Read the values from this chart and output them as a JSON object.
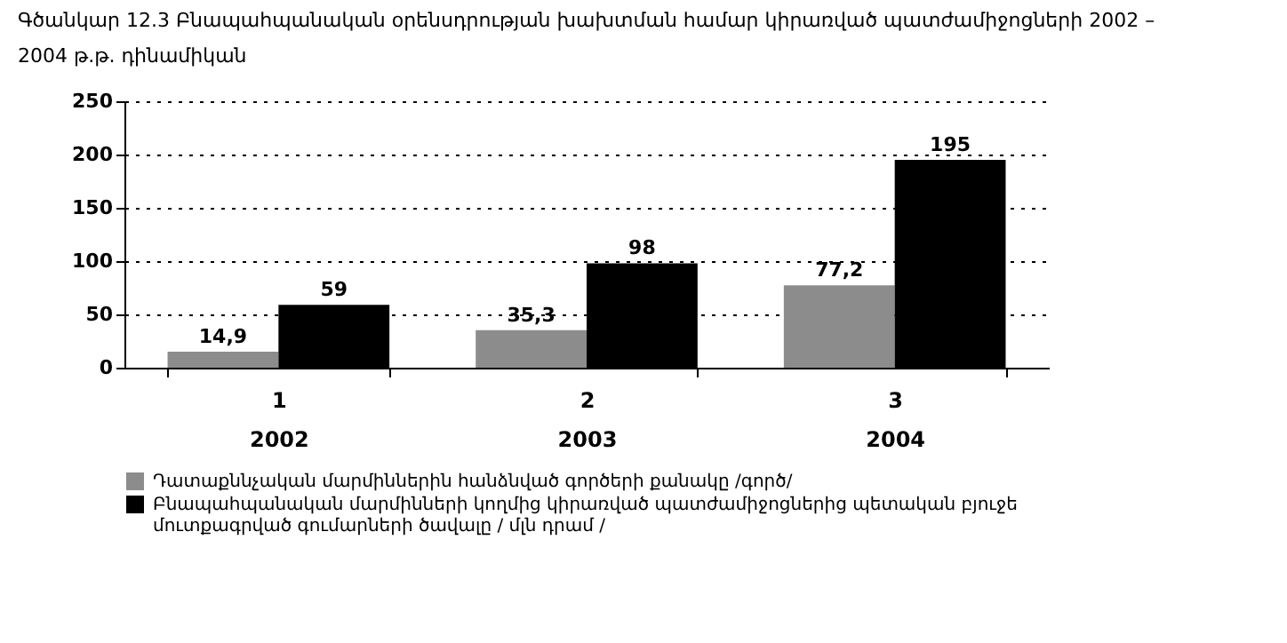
{
  "chart_data": {
    "type": "bar",
    "title": "Գծանկար 12.3 Բնապահպանական օրենսդրության խախտման համար կիրառված պատժամիջոցների 2002 – 2004 թ.թ. դինամիկան",
    "categories": [
      "1\n2002",
      "2\n2003",
      "3\n2004"
    ],
    "series": [
      {
        "name": "Դատաքննչական մարմիններին հանձնված գործերի քանակը /գործ/",
        "color": "#8c8c8c",
        "values": [
          14.9,
          35.3,
          77.2
        ],
        "value_labels": [
          "14,9",
          "35,3",
          "77,2"
        ]
      },
      {
        "name": "Բնապահպանական մարմինների կողմից կիրառված պատժամիջոցներից պետական բյուջե մուտքագրված գումարների ծավալը / մլն դրամ /",
        "color": "#000000",
        "values": [
          59,
          98,
          195
        ],
        "value_labels": [
          "59",
          "98",
          "195"
        ]
      }
    ],
    "ylim": [
      0,
      250
    ],
    "yticks": [
      0,
      50,
      100,
      150,
      200,
      250
    ],
    "grid": "y",
    "legend": "bottom"
  }
}
